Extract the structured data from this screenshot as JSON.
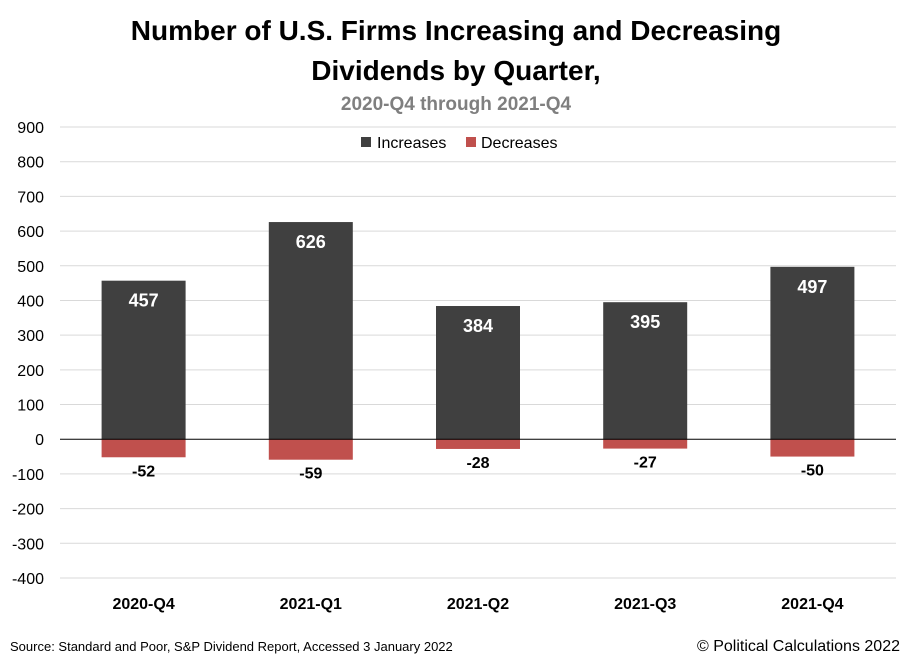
{
  "chart_data": {
    "type": "bar",
    "title_lines": [
      "Number of U.S. Firms Increasing and Decreasing",
      "Dividends by Quarter,"
    ],
    "subtitle": "2020-Q4 through 2021-Q4",
    "categories": [
      "2020-Q4",
      "2021-Q1",
      "2021-Q2",
      "2021-Q3",
      "2021-Q4"
    ],
    "series": [
      {
        "name": "Increases",
        "color": "#404040",
        "values": [
          457,
          626,
          384,
          395,
          497
        ],
        "labels": [
          "457",
          "626",
          "384",
          "395",
          "497"
        ]
      },
      {
        "name": "Decreases",
        "color": "#c0504d",
        "values": [
          -52,
          -59,
          -28,
          -27,
          -50
        ],
        "labels": [
          "-52",
          "-59",
          "-28",
          "-27",
          "-50"
        ]
      }
    ],
    "ylim": [
      -400,
      900
    ],
    "yticks": [
      900,
      800,
      700,
      600,
      500,
      400,
      300,
      200,
      100,
      0,
      -100,
      -200,
      -300,
      -400
    ],
    "ytick_labels": [
      "900",
      "800",
      "700",
      "600",
      "500",
      "400",
      "300",
      "200",
      "100",
      "0",
      "-100",
      "-200",
      "-300",
      "-400"
    ],
    "grid": true,
    "legend_position": "top-center",
    "xlabel": "",
    "ylabel": ""
  },
  "footer": {
    "source": "Source: Standard and Poor, S&P Dividend Report, Accessed 3 January 2022",
    "copyright": "© Political Calculations 2022"
  }
}
